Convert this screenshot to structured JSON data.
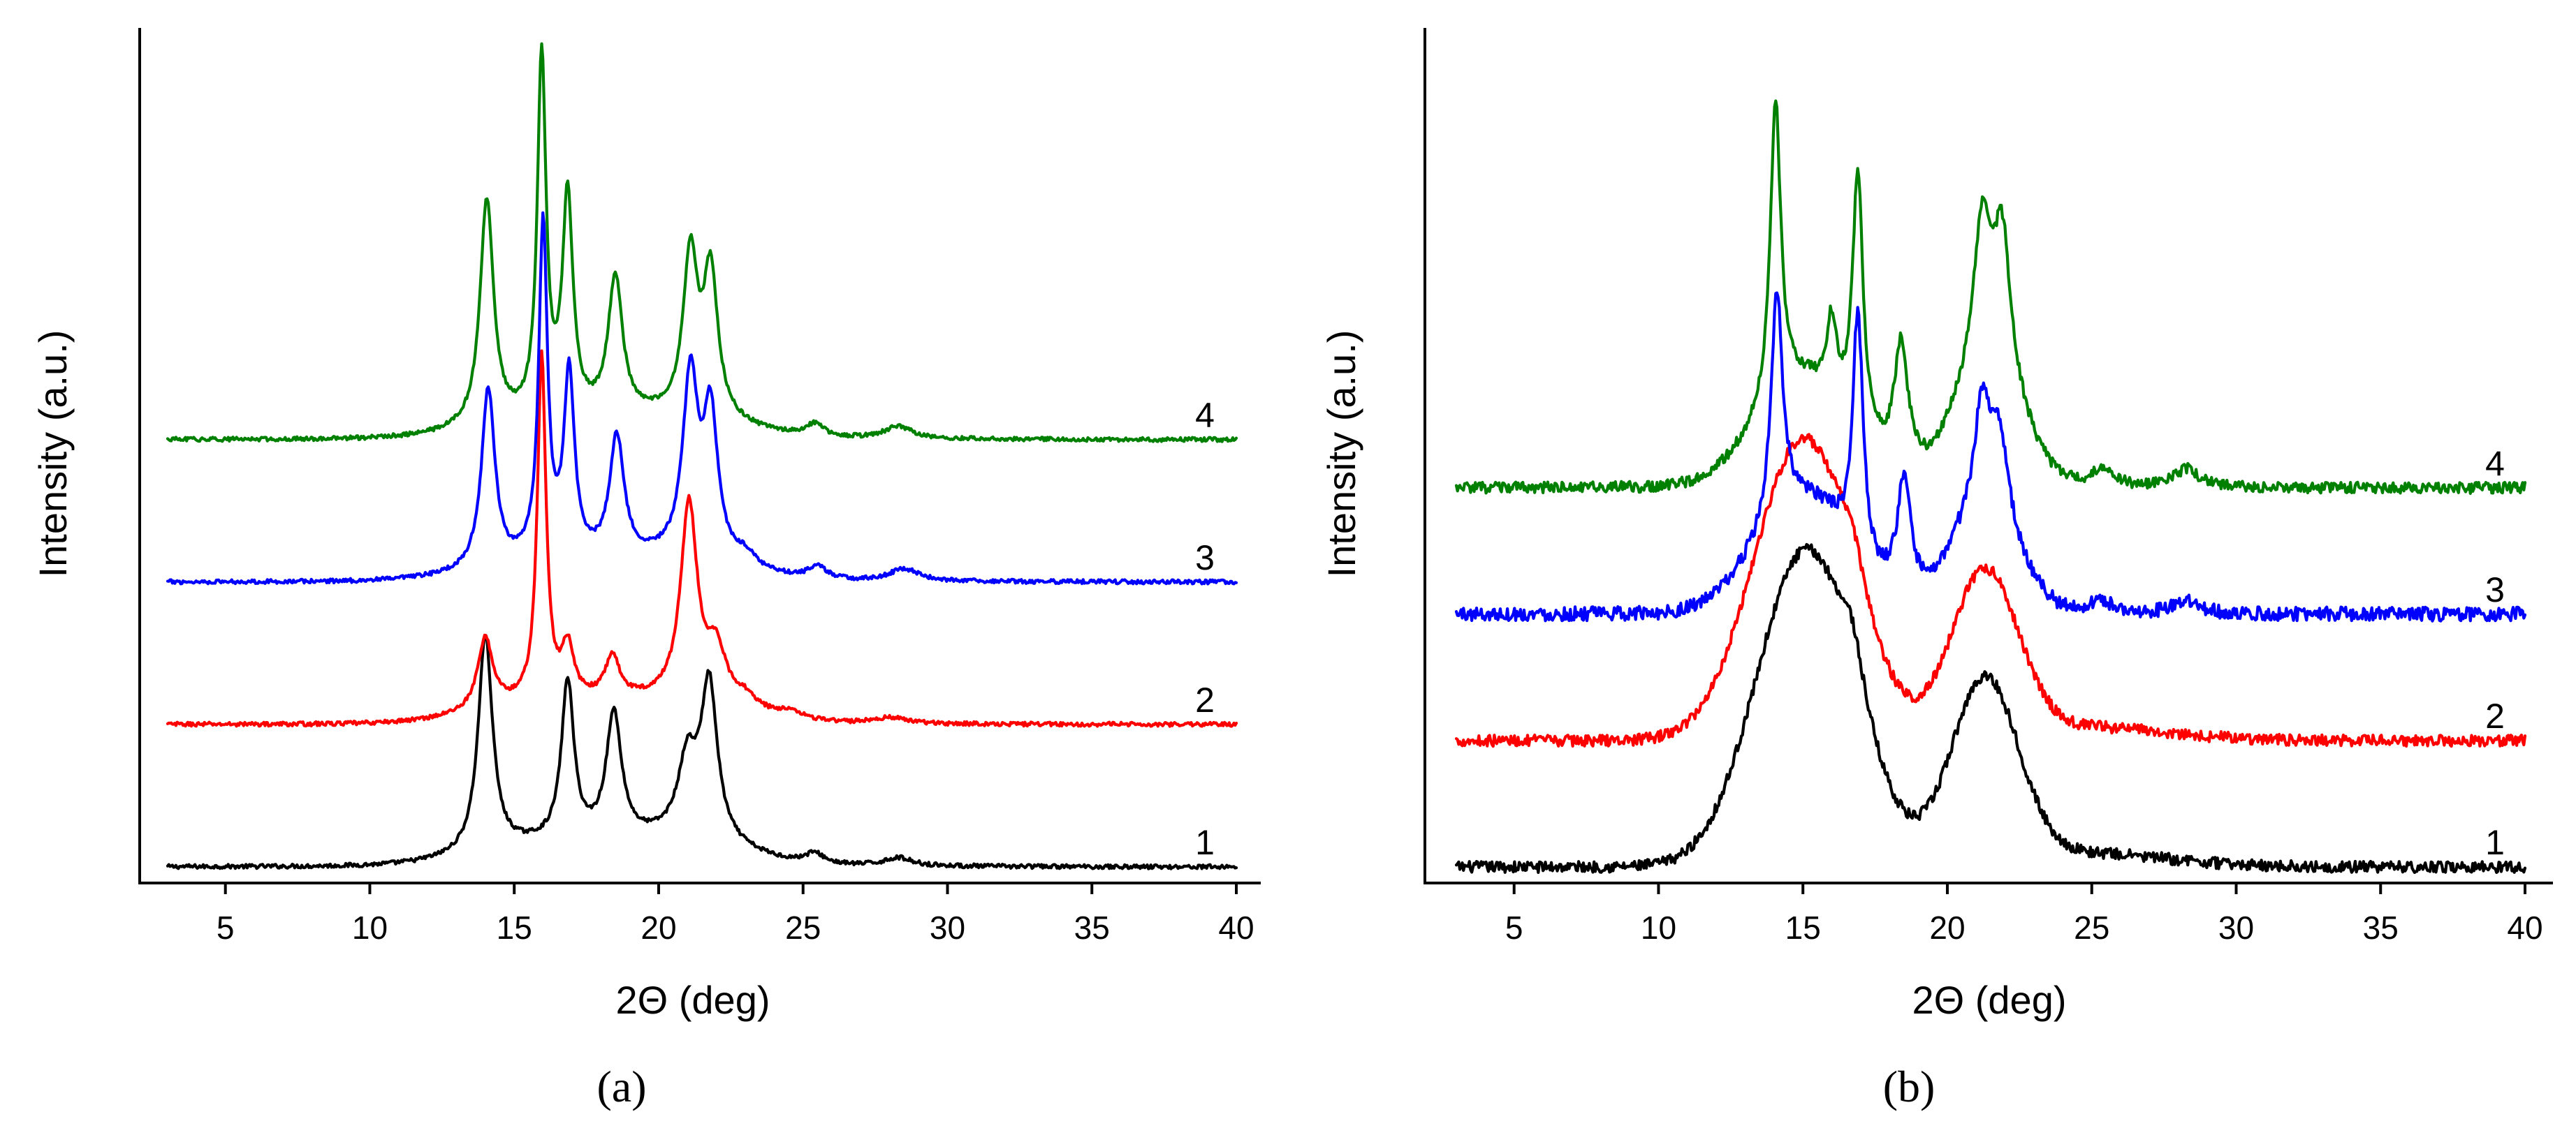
{
  "chart_data": [
    {
      "type": "line",
      "panel_label": "(a)",
      "xlabel": "2Θ (deg)",
      "ylabel": "Intensity (a.u.)",
      "xlim": [
        3,
        40
      ],
      "xticks": [
        5,
        10,
        15,
        20,
        25,
        30,
        35,
        40
      ],
      "yticks": [],
      "grid": false,
      "series": [
        {
          "name": "1",
          "color": "#000000",
          "offset": 0.0,
          "noise": 0.005,
          "peaks": [
            [
              14.0,
              0.52,
              0.3
            ],
            [
              16.85,
              0.38,
              0.26
            ],
            [
              18.45,
              0.3,
              0.32
            ],
            [
              21.0,
              0.18,
              0.4
            ],
            [
              21.75,
              0.37,
              0.34
            ],
            [
              25.4,
              0.025,
              0.4
            ],
            [
              28.3,
              0.02,
              0.6
            ]
          ],
          "humps": [
            [
              16.5,
              0.05,
              2.5
            ],
            [
              21.0,
              0.05,
              2.0
            ]
          ]
        },
        {
          "name": "2",
          "color": "#ff0000",
          "offset": 0.34,
          "noise": 0.005,
          "peaks": [
            [
              14.0,
              0.17,
              0.32
            ],
            [
              15.95,
              0.82,
              0.18
            ],
            [
              16.85,
              0.12,
              0.25
            ],
            [
              18.4,
              0.1,
              0.3
            ],
            [
              21.05,
              0.47,
              0.35
            ],
            [
              22.0,
              0.12,
              0.4
            ],
            [
              23.0,
              0.03,
              0.5
            ],
            [
              24.6,
              0.02,
              0.5
            ],
            [
              28.0,
              0.015,
              0.7
            ]
          ],
          "humps": [
            [
              16.5,
              0.05,
              2.5
            ],
            [
              21.0,
              0.04,
              2.0
            ]
          ]
        },
        {
          "name": "3",
          "color": "#0000ff",
          "offset": 0.68,
          "noise": 0.005,
          "peaks": [
            [
              14.1,
              0.43,
              0.28
            ],
            [
              16.0,
              0.8,
              0.18
            ],
            [
              16.9,
              0.44,
              0.22
            ],
            [
              18.55,
              0.29,
              0.3
            ],
            [
              21.1,
              0.43,
              0.32
            ],
            [
              21.8,
              0.34,
              0.3
            ],
            [
              23.0,
              0.03,
              0.4
            ],
            [
              25.5,
              0.03,
              0.4
            ],
            [
              28.5,
              0.03,
              0.6
            ]
          ],
          "humps": [
            [
              16.5,
              0.04,
              2.5
            ],
            [
              21.0,
              0.04,
              2.0
            ]
          ]
        },
        {
          "name": "4",
          "color": "#008000",
          "offset": 1.02,
          "noise": 0.005,
          "peaks": [
            [
              14.05,
              0.54,
              0.28
            ],
            [
              15.95,
              0.86,
              0.18
            ],
            [
              16.85,
              0.52,
              0.22
            ],
            [
              18.5,
              0.33,
              0.3
            ],
            [
              21.1,
              0.38,
              0.3
            ],
            [
              21.8,
              0.34,
              0.3
            ],
            [
              25.4,
              0.03,
              0.4
            ],
            [
              28.3,
              0.03,
              0.6
            ]
          ],
          "humps": [
            [
              16.5,
              0.04,
              2.5
            ],
            [
              21.0,
              0.04,
              2.0
            ]
          ]
        }
      ]
    },
    {
      "type": "line",
      "panel_label": "(b)",
      "xlabel": "2Θ (deg)",
      "ylabel": "Intensity (a.u.)",
      "xlim": [
        3,
        40
      ],
      "xticks": [
        5,
        10,
        15,
        20,
        25,
        30,
        35,
        40
      ],
      "yticks": [],
      "grid": false,
      "series": [
        {
          "name": "1",
          "color": "#000000",
          "offset": 0.0,
          "noise": 0.012,
          "peaks": [
            [
              16.7,
              0.1,
              0.5
            ]
          ],
          "humps": [
            [
              15.1,
              0.67,
              1.7
            ],
            [
              21.3,
              0.39,
              1.15
            ],
            [
              24.5,
              0.03,
              3.0
            ]
          ]
        },
        {
          "name": "2",
          "color": "#ff0000",
          "offset": 0.27,
          "noise": 0.012,
          "peaks": [
            [
              16.7,
              0.08,
              0.5
            ]
          ],
          "humps": [
            [
              15.0,
              0.64,
              1.7
            ],
            [
              21.3,
              0.35,
              1.15
            ],
            [
              24.5,
              0.03,
              3.0
            ]
          ]
        },
        {
          "name": "3",
          "color": "#0000ff",
          "offset": 0.54,
          "noise": 0.015,
          "peaks": [
            [
              14.1,
              0.48,
              0.24
            ],
            [
              16.9,
              0.52,
              0.22
            ],
            [
              18.5,
              0.25,
              0.3
            ],
            [
              21.2,
              0.22,
              0.3
            ],
            [
              21.8,
              0.18,
              0.35
            ],
            [
              25.3,
              0.03,
              0.4
            ],
            [
              28.3,
              0.03,
              0.5
            ]
          ],
          "humps": [
            [
              15.0,
              0.24,
              1.6
            ],
            [
              21.3,
              0.22,
              1.1
            ]
          ]
        },
        {
          "name": "4",
          "color": "#008000",
          "offset": 0.81,
          "noise": 0.012,
          "peaks": [
            [
              14.05,
              0.64,
              0.22
            ],
            [
              16.0,
              0.16,
              0.2
            ],
            [
              16.9,
              0.55,
              0.22
            ],
            [
              18.4,
              0.27,
              0.3
            ],
            [
              21.2,
              0.3,
              0.35
            ],
            [
              21.9,
              0.3,
              0.35
            ],
            [
              25.4,
              0.04,
              0.4
            ],
            [
              28.3,
              0.04,
              0.5
            ]
          ],
          "humps": [
            [
              15.0,
              0.22,
              1.6
            ],
            [
              21.4,
              0.25,
              1.1
            ]
          ]
        }
      ]
    }
  ]
}
